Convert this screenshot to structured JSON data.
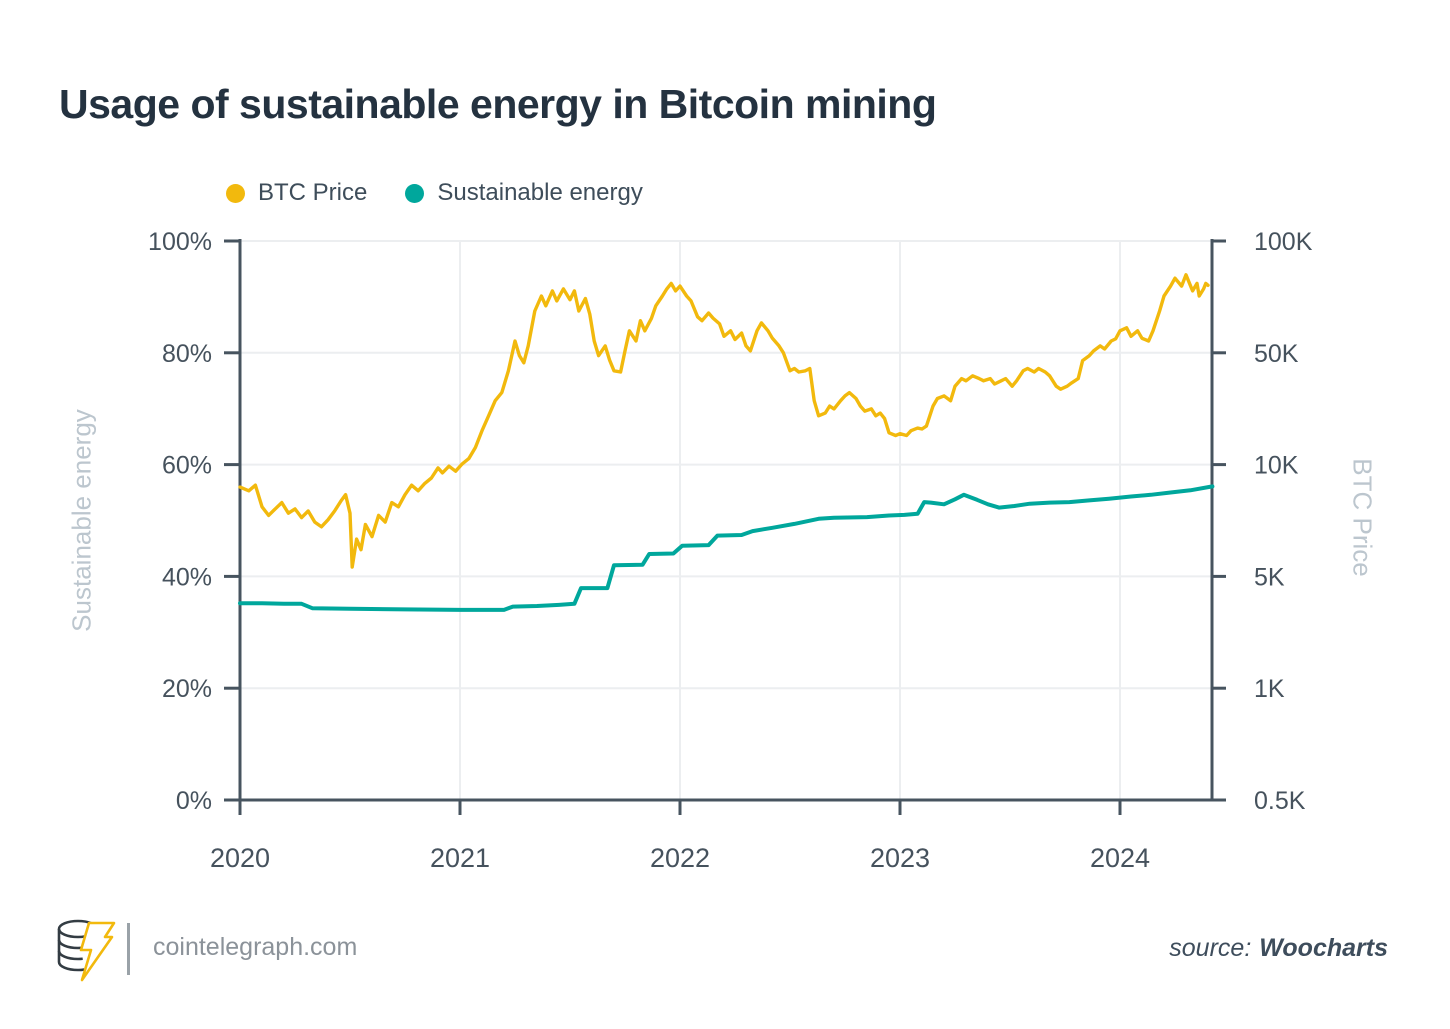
{
  "title": "Usage of sustainable energy in Bitcoin mining",
  "legend": [
    {
      "label": "BTC Price",
      "color": "#f2b90d"
    },
    {
      "label": "Sustainable energy",
      "color": "#00a79c"
    }
  ],
  "footer": {
    "site": "cointelegraph.com",
    "source_prefix": "source:",
    "source_name": "Woocharts"
  },
  "colors": {
    "title_text": "#243240",
    "axis_line": "#47545f",
    "tick_text": "#46525d",
    "axis_title_text": "#bcc6ce",
    "gridline": "#eceef0",
    "btc_line": "#f2b90d",
    "energy_line": "#00a79c"
  },
  "chart_data": {
    "type": "line",
    "title": "Usage of sustainable energy in Bitcoin mining",
    "grid": true,
    "legend_position": "top-left",
    "x_axis": {
      "ticks": [
        "2020",
        "2021",
        "2022",
        "2023",
        "2024"
      ],
      "tick_values": [
        2020,
        2021,
        2022,
        2023,
        2024
      ],
      "range": [
        2020,
        2024.42
      ]
    },
    "left_axis": {
      "label": "Sustainable energy",
      "ticks": [
        "0%",
        "20%",
        "40%",
        "60%",
        "80%",
        "100%"
      ],
      "tick_values": [
        0,
        20,
        40,
        60,
        80,
        100
      ],
      "range": [
        0,
        100
      ],
      "unit": "%"
    },
    "right_axis": {
      "label": "BTC Price",
      "ticks": [
        "0.5K",
        "1K",
        "5K",
        "10K",
        "50K",
        "100K"
      ],
      "tick_values": [
        0.5,
        1,
        5,
        10,
        50,
        100
      ],
      "scale": "log-segments-evenly-spaced",
      "unit": "K USD"
    },
    "series": [
      {
        "name": "BTC Price",
        "axis": "right",
        "color": "#f2b90d",
        "unit": "K USD",
        "points": [
          [
            2020.0,
            8.7
          ],
          [
            2020.04,
            8.5
          ],
          [
            2020.07,
            8.8
          ],
          [
            2020.1,
            7.7
          ],
          [
            2020.13,
            7.3
          ],
          [
            2020.16,
            7.6
          ],
          [
            2020.19,
            7.9
          ],
          [
            2020.22,
            7.4
          ],
          [
            2020.25,
            7.6
          ],
          [
            2020.28,
            7.2
          ],
          [
            2020.31,
            7.5
          ],
          [
            2020.34,
            7.0
          ],
          [
            2020.37,
            6.8
          ],
          [
            2020.4,
            7.1
          ],
          [
            2020.43,
            7.5
          ],
          [
            2020.46,
            8.0
          ],
          [
            2020.48,
            8.3
          ],
          [
            2020.5,
            7.4
          ],
          [
            2020.51,
            5.3
          ],
          [
            2020.53,
            6.3
          ],
          [
            2020.55,
            5.9
          ],
          [
            2020.57,
            6.9
          ],
          [
            2020.6,
            6.4
          ],
          [
            2020.63,
            7.3
          ],
          [
            2020.66,
            7.0
          ],
          [
            2020.69,
            7.9
          ],
          [
            2020.72,
            7.7
          ],
          [
            2020.75,
            8.3
          ],
          [
            2020.78,
            8.8
          ],
          [
            2020.81,
            8.5
          ],
          [
            2020.84,
            8.9
          ],
          [
            2020.87,
            9.2
          ],
          [
            2020.9,
            9.8
          ],
          [
            2020.92,
            9.5
          ],
          [
            2020.95,
            9.9
          ],
          [
            2020.98,
            9.6
          ],
          [
            2021.01,
            10.1
          ],
          [
            2021.04,
            10.9
          ],
          [
            2021.07,
            12.8
          ],
          [
            2021.1,
            16.3
          ],
          [
            2021.13,
            20.2
          ],
          [
            2021.16,
            25.1
          ],
          [
            2021.19,
            28.2
          ],
          [
            2021.22,
            38.6
          ],
          [
            2021.25,
            53.8
          ],
          [
            2021.27,
            48.0
          ],
          [
            2021.29,
            43.3
          ],
          [
            2021.31,
            52.2
          ],
          [
            2021.34,
            64.8
          ],
          [
            2021.37,
            71.1
          ],
          [
            2021.39,
            66.9
          ],
          [
            2021.42,
            73.4
          ],
          [
            2021.44,
            69.0
          ],
          [
            2021.47,
            74.3
          ],
          [
            2021.5,
            69.5
          ],
          [
            2021.52,
            73.4
          ],
          [
            2021.54,
            64.8
          ],
          [
            2021.57,
            70.0
          ],
          [
            2021.59,
            63.5
          ],
          [
            2021.61,
            53.8
          ],
          [
            2021.63,
            48.0
          ],
          [
            2021.66,
            52.2
          ],
          [
            2021.68,
            45.0
          ],
          [
            2021.7,
            38.6
          ],
          [
            2021.73,
            37.9
          ],
          [
            2021.75,
            50.6
          ],
          [
            2021.77,
            57.3
          ],
          [
            2021.8,
            53.8
          ],
          [
            2021.82,
            61.0
          ],
          [
            2021.84,
            57.3
          ],
          [
            2021.87,
            61.9
          ],
          [
            2021.89,
            66.9
          ],
          [
            2021.92,
            71.1
          ],
          [
            2021.94,
            74.3
          ],
          [
            2021.96,
            76.9
          ],
          [
            2021.98,
            73.4
          ],
          [
            2022.0,
            75.6
          ],
          [
            2022.03,
            71.1
          ],
          [
            2022.05,
            69.0
          ],
          [
            2022.08,
            62.5
          ],
          [
            2022.1,
            61.0
          ],
          [
            2022.13,
            64.0
          ],
          [
            2022.15,
            62.0
          ],
          [
            2022.18,
            59.8
          ],
          [
            2022.2,
            55.4
          ],
          [
            2022.23,
            57.3
          ],
          [
            2022.25,
            54.3
          ],
          [
            2022.28,
            56.5
          ],
          [
            2022.3,
            52.2
          ],
          [
            2022.32,
            50.6
          ],
          [
            2022.35,
            57.3
          ],
          [
            2022.37,
            60.2
          ],
          [
            2022.4,
            57.3
          ],
          [
            2022.42,
            54.7
          ],
          [
            2022.45,
            52.2
          ],
          [
            2022.47,
            50.0
          ],
          [
            2022.5,
            38.6
          ],
          [
            2022.52,
            39.9
          ],
          [
            2022.54,
            37.9
          ],
          [
            2022.57,
            38.6
          ],
          [
            2022.59,
            39.9
          ],
          [
            2022.61,
            25.1
          ],
          [
            2022.63,
            20.2
          ],
          [
            2022.66,
            21.0
          ],
          [
            2022.68,
            23.2
          ],
          [
            2022.7,
            22.3
          ],
          [
            2022.73,
            25.1
          ],
          [
            2022.75,
            26.9
          ],
          [
            2022.77,
            28.2
          ],
          [
            2022.8,
            25.9
          ],
          [
            2022.82,
            23.2
          ],
          [
            2022.84,
            21.6
          ],
          [
            2022.87,
            22.3
          ],
          [
            2022.89,
            20.2
          ],
          [
            2022.91,
            21.0
          ],
          [
            2022.93,
            19.4
          ],
          [
            2022.95,
            15.8
          ],
          [
            2022.98,
            15.2
          ],
          [
            2023.0,
            15.6
          ],
          [
            2023.03,
            15.2
          ],
          [
            2023.05,
            16.3
          ],
          [
            2023.08,
            16.9
          ],
          [
            2023.1,
            16.7
          ],
          [
            2023.12,
            17.4
          ],
          [
            2023.15,
            23.2
          ],
          [
            2023.17,
            25.9
          ],
          [
            2023.2,
            26.9
          ],
          [
            2023.23,
            25.1
          ],
          [
            2023.25,
            30.9
          ],
          [
            2023.28,
            34.5
          ],
          [
            2023.3,
            33.4
          ],
          [
            2023.33,
            35.9
          ],
          [
            2023.36,
            34.5
          ],
          [
            2023.38,
            33.4
          ],
          [
            2023.41,
            34.5
          ],
          [
            2023.43,
            31.9
          ],
          [
            2023.46,
            33.4
          ],
          [
            2023.48,
            34.5
          ],
          [
            2023.51,
            30.9
          ],
          [
            2023.53,
            33.4
          ],
          [
            2023.56,
            38.6
          ],
          [
            2023.58,
            39.9
          ],
          [
            2023.61,
            37.9
          ],
          [
            2023.63,
            39.9
          ],
          [
            2023.66,
            37.9
          ],
          [
            2023.68,
            35.9
          ],
          [
            2023.71,
            30.9
          ],
          [
            2023.73,
            29.6
          ],
          [
            2023.76,
            30.9
          ],
          [
            2023.78,
            32.4
          ],
          [
            2023.81,
            34.5
          ],
          [
            2023.83,
            44.7
          ],
          [
            2023.86,
            47.9
          ],
          [
            2023.88,
            50.6
          ],
          [
            2023.91,
            52.2
          ],
          [
            2023.93,
            51.2
          ],
          [
            2023.96,
            53.8
          ],
          [
            2023.98,
            54.5
          ],
          [
            2024.0,
            57.3
          ],
          [
            2024.03,
            58.4
          ],
          [
            2024.05,
            55.4
          ],
          [
            2024.08,
            57.3
          ],
          [
            2024.1,
            54.7
          ],
          [
            2024.13,
            53.8
          ],
          [
            2024.15,
            57.3
          ],
          [
            2024.18,
            64.8
          ],
          [
            2024.2,
            71.1
          ],
          [
            2024.23,
            75.6
          ],
          [
            2024.25,
            79.4
          ],
          [
            2024.28,
            75.6
          ],
          [
            2024.3,
            81.1
          ],
          [
            2024.33,
            73.4
          ],
          [
            2024.35,
            76.9
          ],
          [
            2024.36,
            71.1
          ],
          [
            2024.38,
            74.3
          ],
          [
            2024.39,
            76.9
          ],
          [
            2024.4,
            76.0
          ]
        ]
      },
      {
        "name": "Sustainable energy",
        "axis": "left",
        "color": "#00a79c",
        "unit": "%",
        "points": [
          [
            2020.0,
            35.2
          ],
          [
            2020.1,
            35.2
          ],
          [
            2020.2,
            35.1
          ],
          [
            2020.28,
            35.1
          ],
          [
            2020.33,
            34.3
          ],
          [
            2020.5,
            34.2
          ],
          [
            2020.75,
            34.1
          ],
          [
            2021.0,
            34.0
          ],
          [
            2021.2,
            34.0
          ],
          [
            2021.24,
            34.6
          ],
          [
            2021.35,
            34.7
          ],
          [
            2021.45,
            34.9
          ],
          [
            2021.52,
            35.1
          ],
          [
            2021.55,
            37.9
          ],
          [
            2021.67,
            37.9
          ],
          [
            2021.7,
            42.0
          ],
          [
            2021.83,
            42.1
          ],
          [
            2021.86,
            44.0
          ],
          [
            2021.97,
            44.1
          ],
          [
            2022.01,
            45.5
          ],
          [
            2022.13,
            45.6
          ],
          [
            2022.17,
            47.3
          ],
          [
            2022.28,
            47.4
          ],
          [
            2022.33,
            48.1
          ],
          [
            2022.42,
            48.7
          ],
          [
            2022.52,
            49.4
          ],
          [
            2022.63,
            50.3
          ],
          [
            2022.7,
            50.5
          ],
          [
            2022.85,
            50.6
          ],
          [
            2022.95,
            50.9
          ],
          [
            2023.02,
            51.0
          ],
          [
            2023.08,
            51.2
          ],
          [
            2023.11,
            53.3
          ],
          [
            2023.14,
            53.2
          ],
          [
            2023.2,
            52.9
          ],
          [
            2023.25,
            53.8
          ],
          [
            2023.29,
            54.6
          ],
          [
            2023.35,
            53.7
          ],
          [
            2023.4,
            52.9
          ],
          [
            2023.45,
            52.3
          ],
          [
            2023.52,
            52.6
          ],
          [
            2023.59,
            53.0
          ],
          [
            2023.68,
            53.2
          ],
          [
            2023.77,
            53.3
          ],
          [
            2023.86,
            53.6
          ],
          [
            2023.95,
            53.9
          ],
          [
            2024.05,
            54.3
          ],
          [
            2024.14,
            54.6
          ],
          [
            2024.23,
            55.0
          ],
          [
            2024.32,
            55.4
          ],
          [
            2024.42,
            56.1
          ]
        ]
      }
    ]
  }
}
